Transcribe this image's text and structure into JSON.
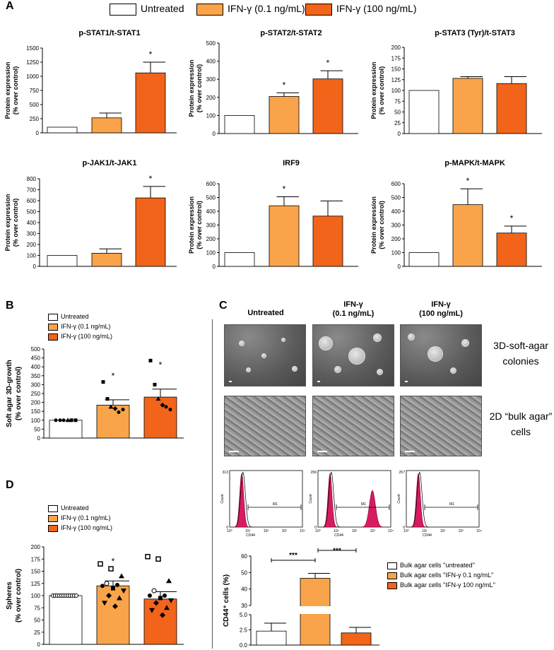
{
  "panel_letters": {
    "a": "A",
    "b": "B",
    "c": "C",
    "d": "D"
  },
  "colors": {
    "untreated": "#ffffff",
    "low": "#f9a44a",
    "high": "#f26419",
    "flow_fill": "#d81b60"
  },
  "legend_top": [
    "Untreated",
    "IFN-γ (0.1 ng/mL)",
    "IFN-γ (100 ng/mL)"
  ],
  "legend_small": [
    "Untreated",
    "IFN-γ (0.1 ng/mL)",
    "IFN-γ (100 ng/mL)"
  ],
  "legend_c": [
    "Bulk agar cells ''untreated''",
    "Bulk agar cells ''IFN-γ 0.1 ng/mL''",
    "Bulk agar cells ''IFN-γ 100 ng/mL''"
  ],
  "panel_c": {
    "col_headers": [
      [
        "Untreated",
        ""
      ],
      [
        "IFN-γ",
        "(0.1 ng/mL)"
      ],
      [
        "IFN-γ",
        "(100 ng/mL)"
      ]
    ],
    "row1_label": [
      "3D-soft-agar",
      "colonies"
    ],
    "row2_label": [
      "2D “bulk agar”",
      "cells"
    ],
    "flow_ymax": [
      "313",
      "256",
      "257"
    ],
    "flow_xlabel": "CD44",
    "flow_ylabel": "Count",
    "flow_gate": "M1",
    "flow_xticks": [
      "10⁰",
      "10¹",
      "10²",
      "10³",
      "10⁴"
    ]
  },
  "chart_data": [
    {
      "id": "stat1",
      "type": "bar",
      "title": "p-STAT1/t-STAT1",
      "ylabel": [
        "Protein expression",
        "(% over control)"
      ],
      "ylim": [
        0,
        1500
      ],
      "yticks": [
        0,
        250,
        500,
        750,
        1000,
        1250,
        1500
      ],
      "categories": [
        "Untreated",
        "IFN-γ (0.1 ng/mL)",
        "IFN-γ (100 ng/mL)"
      ],
      "values": [
        100,
        265,
        1060
      ],
      "errors": [
        0,
        85,
        190
      ],
      "sig": [
        "",
        "",
        "*"
      ]
    },
    {
      "id": "stat2",
      "type": "bar",
      "title": "p-STAT2/t-STAT2",
      "ylabel": [
        "Protein expression",
        "(% over control)"
      ],
      "ylim": [
        0,
        500
      ],
      "yticks": [
        0,
        100,
        200,
        300,
        400,
        500
      ],
      "categories": [
        "Untreated",
        "IFN-γ (0.1 ng/mL)",
        "IFN-γ (100 ng/mL)"
      ],
      "values": [
        100,
        205,
        302
      ],
      "errors": [
        0,
        20,
        45
      ],
      "sig": [
        "",
        "*",
        "*"
      ]
    },
    {
      "id": "stat3",
      "type": "bar",
      "title": "p-STAT3 (Tyr)/t-STAT3",
      "ylabel": [
        "Protein expression",
        "(% over control)"
      ],
      "ylim": [
        0,
        200
      ],
      "yticks": [
        0,
        25,
        50,
        75,
        100,
        125,
        150,
        175,
        200
      ],
      "categories": [
        "Untreated",
        "IFN-γ (0.1 ng/mL)",
        "IFN-γ (100 ng/mL)"
      ],
      "values": [
        100,
        128,
        116
      ],
      "errors": [
        0,
        4,
        16
      ],
      "sig": [
        "",
        "",
        ""
      ]
    },
    {
      "id": "jak1",
      "type": "bar",
      "title": "p-JAK1/t-JAK1",
      "ylabel": [
        "Protein expression",
        "(% over control)"
      ],
      "ylim": [
        0,
        800
      ],
      "yticks": [
        0,
        100,
        200,
        300,
        400,
        500,
        600,
        700,
        800
      ],
      "categories": [
        "Untreated",
        "IFN-γ (0.1 ng/mL)",
        "IFN-γ (100 ng/mL)"
      ],
      "values": [
        100,
        120,
        625
      ],
      "errors": [
        0,
        40,
        105
      ],
      "sig": [
        "",
        "",
        "*"
      ]
    },
    {
      "id": "irf9",
      "type": "bar",
      "title": "IRF9",
      "ylabel": [
        "Protein expression",
        "(% over control)"
      ],
      "ylim": [
        0,
        600
      ],
      "yticks": [
        0,
        100,
        200,
        300,
        400,
        500,
        600
      ],
      "categories": [
        "Untreated",
        "IFN-γ (0.1 ng/mL)",
        "IFN-γ (100 ng/mL)"
      ],
      "values": [
        100,
        440,
        365
      ],
      "errors": [
        0,
        65,
        110
      ],
      "sig": [
        "",
        "*",
        ""
      ]
    },
    {
      "id": "mapk",
      "type": "bar",
      "title": "p-MAPK/t-MAPK",
      "ylabel": [
        "Protein expression",
        "(% over control)"
      ],
      "ylim": [
        0,
        600
      ],
      "yticks": [
        0,
        100,
        200,
        300,
        400,
        500,
        600
      ],
      "categories": [
        "Untreated",
        "IFN-γ (0.1 ng/mL)",
        "IFN-γ (100 ng/mL)"
      ],
      "values": [
        100,
        448,
        242
      ],
      "errors": [
        0,
        115,
        50
      ],
      "sig": [
        "",
        "*",
        "*"
      ]
    },
    {
      "id": "softagar",
      "type": "bar",
      "title": "",
      "ylabel": [
        "Soft agar 3D-growth",
        "(% over control)"
      ],
      "ylim": [
        0,
        500
      ],
      "yticks": [
        0,
        50,
        100,
        150,
        200,
        250,
        300,
        350,
        400,
        450,
        500
      ],
      "categories": [
        "Untreated",
        "IFN-γ (0.1 ng/mL)",
        "IFN-γ (100 ng/mL)"
      ],
      "values": [
        100,
        185,
        230
      ],
      "errors": [
        0,
        30,
        45
      ],
      "sig": [
        "",
        "*",
        "*"
      ],
      "points": [
        [
          100,
          100,
          100,
          100,
          100,
          100
        ],
        [
          315,
          220,
          175,
          165,
          145,
          160
        ],
        [
          435,
          300,
          220,
          185,
          175,
          160
        ]
      ]
    },
    {
      "id": "spheres",
      "type": "bar",
      "title": "",
      "ylabel": [
        "Spheres",
        "(% over control)"
      ],
      "ylim": [
        0,
        200
      ],
      "yticks": [
        0,
        25,
        50,
        75,
        100,
        125,
        150,
        175,
        200
      ],
      "categories": [
        "Untreated",
        "IFN-γ (0.1 ng/mL)",
        "IFN-γ (100 ng/mL)"
      ],
      "values": [
        100,
        120,
        93
      ],
      "errors": [
        0,
        10,
        15
      ],
      "sig": [
        "",
        "*",
        ""
      ],
      "points": [
        [
          100,
          100,
          100,
          100,
          100,
          100,
          100,
          100,
          100,
          100,
          100,
          100
        ],
        [
          165,
          155,
          140,
          125,
          122,
          120,
          115,
          110,
          100,
          95,
          85,
          78
        ],
        [
          180,
          175,
          130,
          110,
          100,
          100,
          95,
          90,
          85,
          75,
          70,
          60
        ]
      ]
    },
    {
      "id": "cd44",
      "type": "bar",
      "title": "",
      "ylabel": [
        "CD44⁺ cells (%)"
      ],
      "ylim": [
        0,
        60
      ],
      "yticks": [
        0,
        2.5,
        5.0,
        30,
        40,
        50,
        60
      ],
      "categories": [
        "Bulk agar cells ''untreated''",
        "Bulk agar cells ''IFN-γ 0.1 ng/mL''",
        "Bulk agar cells ''IFN-γ 100 ng/mL''"
      ],
      "values": [
        2.3,
        46.5,
        2.0
      ],
      "errors": [
        1.3,
        3.0,
        0.9
      ],
      "sig_brackets": [
        "***",
        "***"
      ],
      "axis_break": [
        5.0,
        30
      ]
    }
  ]
}
